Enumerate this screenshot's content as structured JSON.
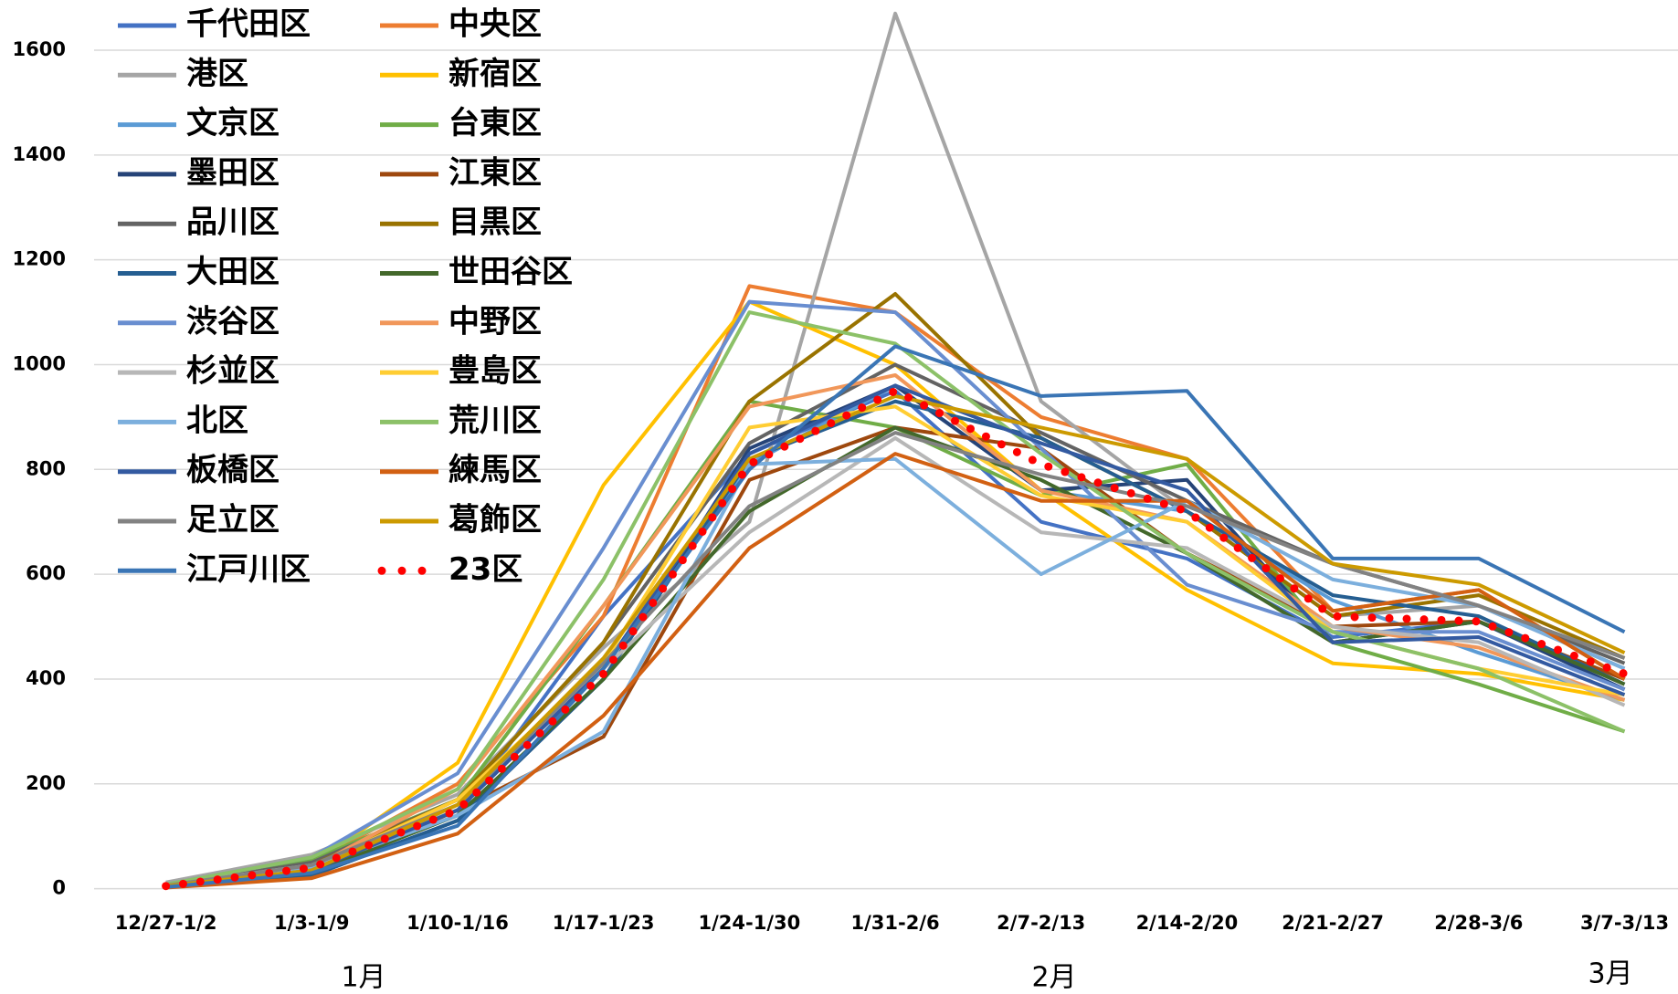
{
  "chart_data": {
    "type": "line",
    "categories": [
      "12/27-1/2",
      "1/3-1/9",
      "1/10-1/16",
      "1/17-1/23",
      "1/24-1/30",
      "1/31-2/6",
      "2/7-2/13",
      "2/14-2/20",
      "2/21-2/27",
      "2/28-3/6",
      "3/7-3/13"
    ],
    "annotations": [
      "1月",
      "2月",
      "3月"
    ],
    "ylim": [
      0,
      1600
    ],
    "yticks": [
      0,
      200,
      400,
      600,
      800,
      1000,
      1200,
      1400,
      1600
    ],
    "grid": true,
    "series": [
      {
        "name": "千代田区",
        "color": "#4472C4",
        "values": [
          3,
          35,
          140,
          520,
          830,
          950,
          700,
          630,
          480,
          510,
          380
        ]
      },
      {
        "name": "中央区",
        "color": "#ED7D31",
        "values": [
          8,
          50,
          200,
          520,
          1150,
          1100,
          900,
          820,
          530,
          570,
          400
        ]
      },
      {
        "name": "港区",
        "color": "#A5A5A5",
        "values": [
          12,
          65,
          180,
          460,
          700,
          1670,
          930,
          720,
          520,
          540,
          420
        ]
      },
      {
        "name": "新宿区",
        "color": "#FFC000",
        "values": [
          5,
          45,
          240,
          770,
          1120,
          1000,
          760,
          570,
          430,
          410,
          360
        ]
      },
      {
        "name": "文京区",
        "color": "#5B9BD5",
        "values": [
          4,
          30,
          150,
          420,
          810,
          960,
          760,
          720,
          550,
          450,
          360
        ]
      },
      {
        "name": "台東区",
        "color": "#70AD47",
        "values": [
          6,
          55,
          170,
          540,
          930,
          880,
          750,
          810,
          470,
          390,
          300
        ]
      },
      {
        "name": "墨田区",
        "color": "#264478",
        "values": [
          3,
          25,
          130,
          400,
          840,
          960,
          760,
          780,
          470,
          510,
          380
        ]
      },
      {
        "name": "江東区",
        "color": "#9E480E",
        "values": [
          3,
          30,
          150,
          290,
          780,
          880,
          840,
          640,
          500,
          510,
          400
        ]
      },
      {
        "name": "品川区",
        "color": "#636363",
        "values": [
          6,
          50,
          170,
          470,
          850,
          1000,
          870,
          740,
          620,
          540,
          430
        ]
      },
      {
        "name": "目黒区",
        "color": "#997300",
        "values": [
          4,
          45,
          170,
          470,
          930,
          1135,
          860,
          720,
          520,
          560,
          440
        ]
      },
      {
        "name": "大田区",
        "color": "#255E91",
        "values": [
          3,
          25,
          130,
          400,
          820,
          930,
          860,
          720,
          560,
          520,
          390
        ]
      },
      {
        "name": "世田谷区",
        "color": "#43682B",
        "values": [
          3,
          30,
          140,
          400,
          720,
          880,
          780,
          640,
          470,
          510,
          390
        ]
      },
      {
        "name": "渋谷区",
        "color": "#698ED0",
        "values": [
          8,
          60,
          220,
          650,
          1120,
          1100,
          840,
          580,
          490,
          490,
          380
        ]
      },
      {
        "name": "中野区",
        "color": "#F1975A",
        "values": [
          5,
          40,
          190,
          540,
          920,
          980,
          760,
          700,
          500,
          460,
          360
        ]
      },
      {
        "name": "杉並区",
        "color": "#B7B7B7",
        "values": [
          7,
          45,
          150,
          420,
          680,
          860,
          680,
          650,
          500,
          470,
          350
        ]
      },
      {
        "name": "豊島区",
        "color": "#FFCD33",
        "values": [
          4,
          40,
          170,
          430,
          880,
          920,
          750,
          700,
          490,
          420,
          370
        ]
      },
      {
        "name": "北区",
        "color": "#7CAFDD",
        "values": [
          5,
          40,
          140,
          300,
          810,
          820,
          600,
          740,
          590,
          540,
          420
        ]
      },
      {
        "name": "荒川区",
        "color": "#8CC168",
        "values": [
          8,
          60,
          190,
          590,
          1100,
          1040,
          830,
          640,
          490,
          420,
          300
        ]
      },
      {
        "name": "板橋区",
        "color": "#335AA1",
        "values": [
          4,
          35,
          150,
          420,
          830,
          960,
          850,
          760,
          470,
          480,
          370
        ]
      },
      {
        "name": "練馬区",
        "color": "#D26012",
        "values": [
          2,
          20,
          105,
          330,
          650,
          830,
          740,
          740,
          530,
          570,
          400
        ]
      },
      {
        "name": "足立区",
        "color": "#828282",
        "values": [
          6,
          45,
          160,
          430,
          730,
          870,
          790,
          730,
          620,
          540,
          440
        ]
      },
      {
        "name": "葛飾区",
        "color": "#CC9A00",
        "values": [
          5,
          35,
          160,
          440,
          820,
          940,
          880,
          820,
          620,
          580,
          450
        ]
      },
      {
        "name": "江戸川区",
        "color": "#3A75B5",
        "values": [
          3,
          30,
          120,
          420,
          800,
          1035,
          940,
          950,
          630,
          630,
          490
        ]
      },
      {
        "name": "23区",
        "color": "#FF0000",
        "dotted": true,
        "values": [
          5,
          40,
          150,
          410,
          810,
          950,
          810,
          720,
          520,
          510,
          410
        ]
      }
    ]
  }
}
